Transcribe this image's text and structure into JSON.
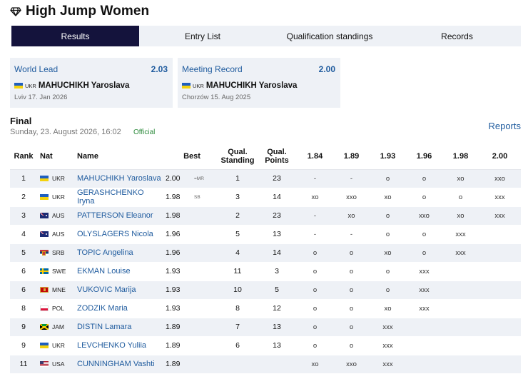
{
  "page_title": "High Jump Women",
  "tabs": [
    {
      "label": "Results",
      "active": true
    },
    {
      "label": "Entry List",
      "active": false
    },
    {
      "label": "Qualification standings",
      "active": false
    },
    {
      "label": "Records",
      "active": false
    }
  ],
  "records": [
    {
      "label": "World Lead",
      "value": "2.03",
      "nat": "UKR",
      "athlete": "MAHUCHIKH Yaroslava",
      "place_date": "Lviv 17. Jan 2026"
    },
    {
      "label": "Meeting Record",
      "value": "2.00",
      "nat": "UKR",
      "athlete": "MAHUCHIKH Yaroslava",
      "place_date": "Chorzów 15. Aug 2025"
    }
  ],
  "final": {
    "title": "Final",
    "date": "Sunday, 23. August 2026, 16:02",
    "status": "Official",
    "reports_label": "Reports"
  },
  "columns": {
    "rank": "Rank",
    "nat": "Nat",
    "name": "Name",
    "best": "Best",
    "qual_standing": "Qual. Standing",
    "qual_points": "Qual. Points",
    "heights": [
      "1.84",
      "1.89",
      "1.93",
      "1.96",
      "1.98",
      "2.00"
    ]
  },
  "accent_color": "#14133c",
  "link_color": "#1f5b9e",
  "rows": [
    {
      "rank": "1",
      "nat": "UKR",
      "name": "MAHUCHIKH Yaroslava",
      "best": "2.00",
      "note": "=MR",
      "qs": "1",
      "qp": "23",
      "h": [
        "-",
        "-",
        "o",
        "o",
        "xo",
        "xxo"
      ]
    },
    {
      "rank": "2",
      "nat": "UKR",
      "name": "GERASHCHENKO Iryna",
      "best": "1.98",
      "note": "SB",
      "qs": "3",
      "qp": "14",
      "h": [
        "xo",
        "xxo",
        "xo",
        "o",
        "o",
        "xxx"
      ]
    },
    {
      "rank": "3",
      "nat": "AUS",
      "name": "PATTERSON Eleanor",
      "best": "1.98",
      "note": "",
      "qs": "2",
      "qp": "23",
      "h": [
        "-",
        "xo",
        "o",
        "xxo",
        "xo",
        "xxx"
      ]
    },
    {
      "rank": "4",
      "nat": "AUS",
      "name": "OLYSLAGERS Nicola",
      "best": "1.96",
      "note": "",
      "qs": "5",
      "qp": "13",
      "h": [
        "-",
        "-",
        "o",
        "o",
        "xxx",
        ""
      ]
    },
    {
      "rank": "5",
      "nat": "SRB",
      "name": "TOPIC Angelina",
      "best": "1.96",
      "note": "",
      "qs": "4",
      "qp": "14",
      "h": [
        "o",
        "o",
        "xo",
        "o",
        "xxx",
        ""
      ]
    },
    {
      "rank": "6",
      "nat": "SWE",
      "name": "EKMAN Louise",
      "best": "1.93",
      "note": "",
      "qs": "11",
      "qp": "3",
      "h": [
        "o",
        "o",
        "o",
        "xxx",
        "",
        ""
      ]
    },
    {
      "rank": "6",
      "nat": "MNE",
      "name": "VUKOVIC Marija",
      "best": "1.93",
      "note": "",
      "qs": "10",
      "qp": "5",
      "h": [
        "o",
        "o",
        "o",
        "xxx",
        "",
        ""
      ]
    },
    {
      "rank": "8",
      "nat": "POL",
      "name": "ZODZIK Maria",
      "best": "1.93",
      "note": "",
      "qs": "8",
      "qp": "12",
      "h": [
        "o",
        "o",
        "xo",
        "xxx",
        "",
        ""
      ]
    },
    {
      "rank": "9",
      "nat": "JAM",
      "name": "DISTIN Lamara",
      "best": "1.89",
      "note": "",
      "qs": "7",
      "qp": "13",
      "h": [
        "o",
        "o",
        "xxx",
        "",
        "",
        ""
      ]
    },
    {
      "rank": "9",
      "nat": "UKR",
      "name": "LEVCHENKO Yuliia",
      "best": "1.89",
      "note": "",
      "qs": "6",
      "qp": "13",
      "h": [
        "o",
        "o",
        "xxx",
        "",
        "",
        ""
      ]
    },
    {
      "rank": "11",
      "nat": "USA",
      "name": "CUNNINGHAM Vashti",
      "best": "1.89",
      "note": "",
      "qs": "",
      "qp": "",
      "h": [
        "xo",
        "xxo",
        "xxx",
        "",
        "",
        ""
      ]
    }
  ]
}
